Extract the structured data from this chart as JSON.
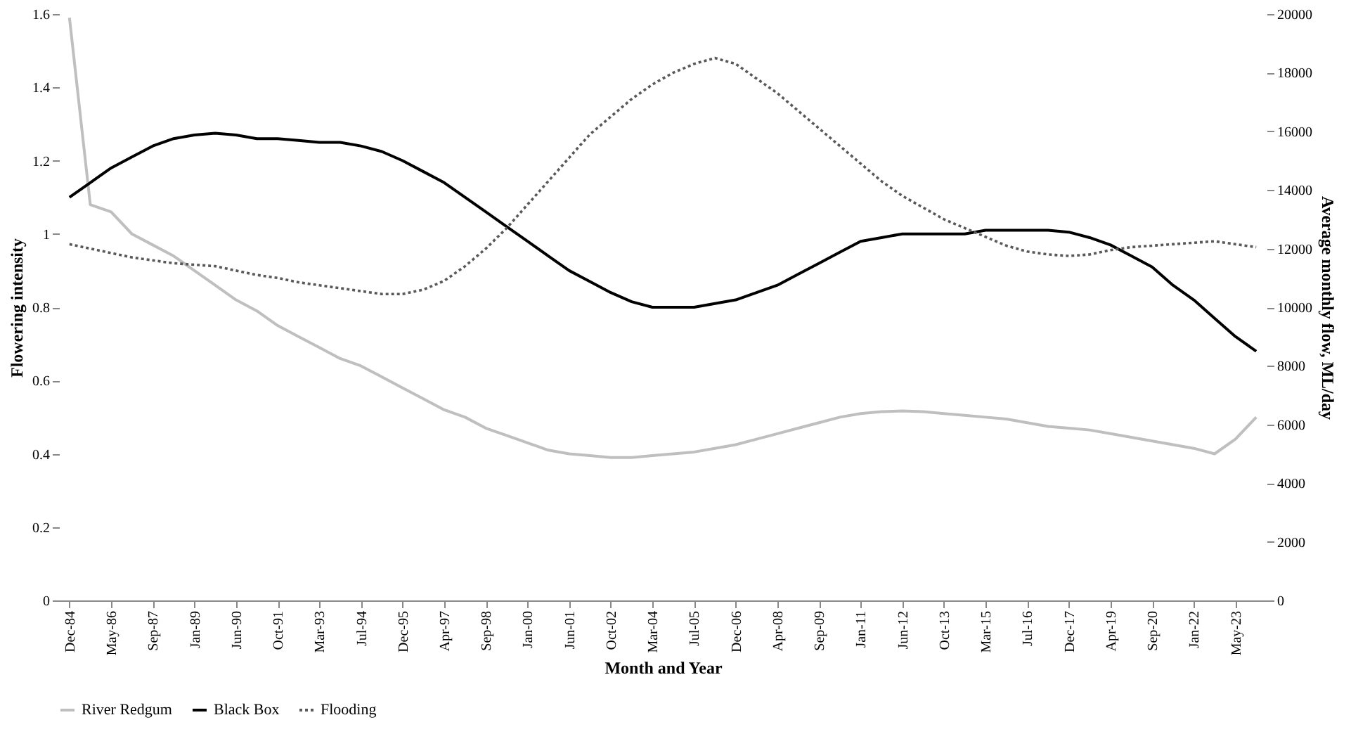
{
  "chart_data": {
    "type": "line",
    "xlabel": "Month and Year",
    "ylabel": "Flowering intensity",
    "y2label": "Average monthly flow, ML/day",
    "categories": [
      "Dec-84",
      null,
      "May-86",
      null,
      "Sep-87",
      null,
      "Jan-89",
      null,
      "Jun-90",
      null,
      "Oct-91",
      null,
      "Mar-93",
      null,
      "Jul-94",
      null,
      "Dec-95",
      null,
      "Apr-97",
      null,
      "Sep-98",
      null,
      "Jan-00",
      null,
      "Jun-01",
      null,
      "Oct-02",
      null,
      "Mar-04",
      null,
      "Jul-05",
      null,
      "Dec-06",
      null,
      "Apr-08",
      null,
      "Sep-09",
      null,
      "Jan-11",
      null,
      "Jun-12",
      null,
      "Oct-13",
      null,
      "Mar-15",
      null,
      "Jul-16",
      null,
      "Dec-17",
      null,
      "Apr-19",
      null,
      "Sep-20",
      null,
      "Jan-22",
      null,
      "May-23",
      null
    ],
    "ylim": [
      0,
      1.6
    ],
    "yticks": [
      0,
      0.2,
      0.4,
      0.6,
      0.8,
      1,
      1.2,
      1.4,
      1.6
    ],
    "y2lim": [
      0,
      20000
    ],
    "y2ticks": [
      0,
      2000,
      4000,
      6000,
      8000,
      10000,
      12000,
      14000,
      16000,
      18000,
      20000
    ],
    "grid": false,
    "legend": "bottom",
    "marker": "none",
    "series": [
      {
        "name": "River Redgum",
        "color": "#bfbfbf",
        "line_style": "solid",
        "values": [
          1.59,
          1.08,
          1.06,
          1.0,
          0.97,
          0.94,
          0.9,
          0.86,
          0.82,
          0.79,
          0.75,
          0.72,
          0.69,
          0.66,
          0.64,
          0.61,
          0.58,
          0.55,
          0.52,
          0.5,
          0.47,
          0.45,
          0.43,
          0.41,
          0.4,
          0.395,
          0.39,
          0.39,
          0.395,
          0.4,
          0.405,
          0.415,
          0.425,
          0.44,
          0.455,
          0.47,
          0.485,
          0.5,
          0.51,
          0.515,
          0.517,
          0.515,
          0.51,
          0.505,
          0.5,
          0.495,
          0.485,
          0.475,
          0.47,
          0.465,
          0.455,
          0.445,
          0.435,
          0.425,
          0.415,
          0.4,
          0.44,
          0.5
        ]
      },
      {
        "name": "Black Box",
        "color": "#000000",
        "line_style": "solid",
        "values": [
          1.1,
          1.14,
          1.18,
          1.21,
          1.24,
          1.26,
          1.27,
          1.275,
          1.27,
          1.26,
          1.26,
          1.255,
          1.25,
          1.25,
          1.24,
          1.225,
          1.2,
          1.17,
          1.14,
          1.1,
          1.06,
          1.02,
          0.98,
          0.94,
          0.9,
          0.87,
          0.84,
          0.815,
          0.8,
          0.8,
          0.8,
          0.81,
          0.82,
          0.84,
          0.86,
          0.89,
          0.92,
          0.95,
          0.98,
          0.99,
          1.0,
          1.0,
          1.0,
          1.0,
          1.01,
          1.01,
          1.01,
          1.01,
          1.005,
          0.99,
          0.97,
          0.94,
          0.91,
          0.86,
          0.82,
          0.77,
          0.72,
          0.68
        ]
      },
      {
        "name": "Flooding",
        "color": "#595959",
        "line_style": "dotted",
        "axis": "y2",
        "values": [
          12150,
          12000,
          11850,
          11700,
          11600,
          11500,
          11450,
          11400,
          11250,
          11100,
          11000,
          10850,
          10750,
          10650,
          10550,
          10450,
          10450,
          10600,
          10900,
          11400,
          12000,
          12700,
          13500,
          14300,
          15100,
          15900,
          16500,
          17100,
          17600,
          18000,
          18300,
          18500,
          18300,
          17800,
          17300,
          16700,
          16100,
          15500,
          14900,
          14300,
          13800,
          13400,
          13000,
          12700,
          12400,
          12100,
          11900,
          11800,
          11750,
          11800,
          11950,
          12050,
          12100,
          12150,
          12200,
          12250,
          12150,
          12050
        ]
      }
    ]
  }
}
